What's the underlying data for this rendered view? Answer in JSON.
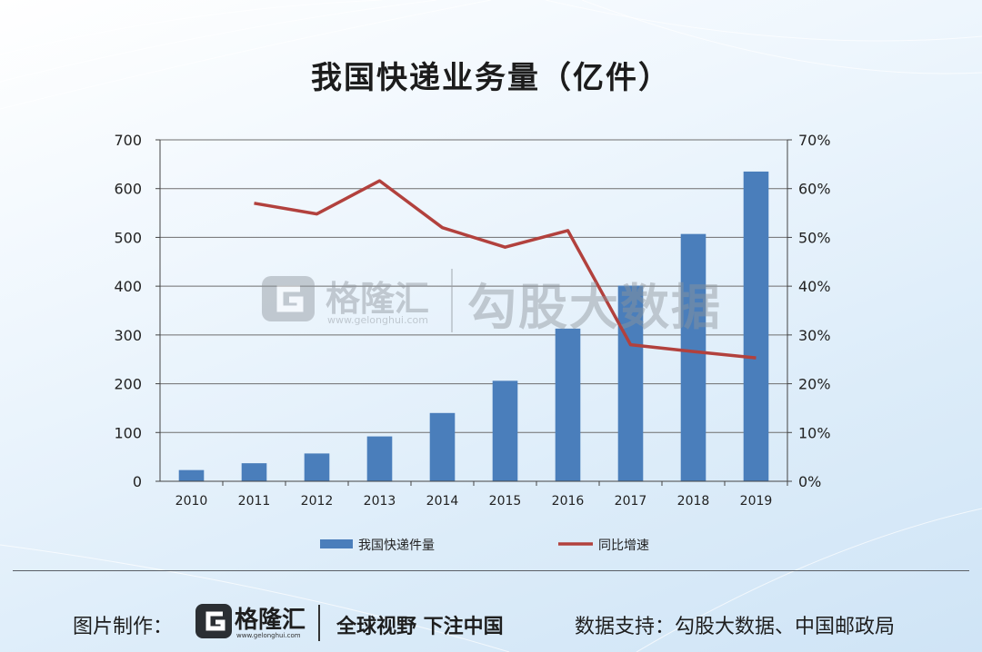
{
  "chart_data": {
    "type": "bar",
    "title": "我国快递业务量（亿件）",
    "categories": [
      "2010",
      "2011",
      "2012",
      "2013",
      "2014",
      "2015",
      "2016",
      "2017",
      "2018",
      "2019"
    ],
    "series": [
      {
        "name": "我国快递件量",
        "type": "bar",
        "axis": "left",
        "color": "#4a7ebb",
        "values": [
          23,
          37,
          57,
          92,
          140,
          206,
          313,
          401,
          507,
          635
        ]
      },
      {
        "name": "同比增速",
        "type": "line",
        "axis": "right",
        "color": "#b2413d",
        "values": [
          null,
          57.0,
          54.8,
          61.6,
          52.0,
          48.0,
          51.4,
          28.0,
          26.6,
          25.3
        ]
      }
    ],
    "y_left": {
      "min": 0,
      "max": 700,
      "step": 100,
      "ticks": [
        "0",
        "100",
        "200",
        "300",
        "400",
        "500",
        "600",
        "700"
      ]
    },
    "y_right": {
      "min": 0,
      "max": 70,
      "step": 10,
      "ticks": [
        "0%",
        "10%",
        "20%",
        "30%",
        "40%",
        "50%",
        "60%",
        "70%"
      ]
    },
    "grid": true,
    "legend_position": "bottom"
  },
  "watermark": {
    "brand": "格隆汇",
    "url": "www.gelonghui.com",
    "source": "勾股大数据"
  },
  "footer": {
    "label": "图片制作：",
    "brand": "格隆汇",
    "url": "www.gelonghui.com",
    "slogan": "全球视野 下注中国",
    "support": "数据支持：勾股大数据、中国邮政局"
  },
  "colors": {
    "bar": "#4a7ebb",
    "line": "#b2413d",
    "grid": "#6e6e6e",
    "logo": "#2b2f33"
  }
}
